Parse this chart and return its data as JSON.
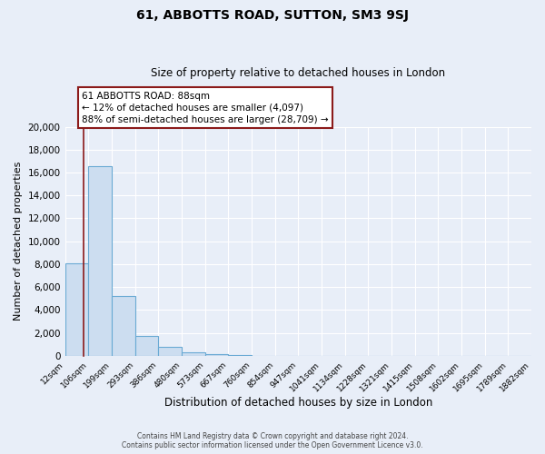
{
  "title": "61, ABBOTTS ROAD, SUTTON, SM3 9SJ",
  "subtitle": "Size of property relative to detached houses in London",
  "xlabel": "Distribution of detached houses by size in London",
  "ylabel": "Number of detached properties",
  "property_size": 88,
  "property_label": "61 ABBOTTS ROAD: 88sqm",
  "annotation_line1": "← 12% of detached houses are smaller (4,097)",
  "annotation_line2": "88% of semi-detached houses are larger (28,709) →",
  "bin_edges": [
    12,
    106,
    199,
    293,
    386,
    480,
    573,
    667,
    760,
    854,
    947,
    1041,
    1134,
    1228,
    1321,
    1415,
    1508,
    1602,
    1695,
    1789,
    1882
  ],
  "bin_counts": [
    8100,
    16550,
    5250,
    1750,
    750,
    275,
    175,
    100,
    0,
    0,
    0,
    0,
    0,
    0,
    0,
    0,
    0,
    0,
    0,
    0
  ],
  "bar_facecolor": "#ccddf0",
  "bar_edgecolor": "#6aaad4",
  "redline_color": "#8b1a1a",
  "annotation_box_edgecolor": "#8b1a1a",
  "annotation_box_facecolor": "#ffffff",
  "background_color": "#e8eef8",
  "grid_color": "#ffffff",
  "ylim": [
    0,
    20000
  ],
  "yticks": [
    0,
    2000,
    4000,
    6000,
    8000,
    10000,
    12000,
    14000,
    16000,
    18000,
    20000
  ],
  "footer_line1": "Contains HM Land Registry data © Crown copyright and database right 2024.",
  "footer_line2": "Contains public sector information licensed under the Open Government Licence v3.0."
}
